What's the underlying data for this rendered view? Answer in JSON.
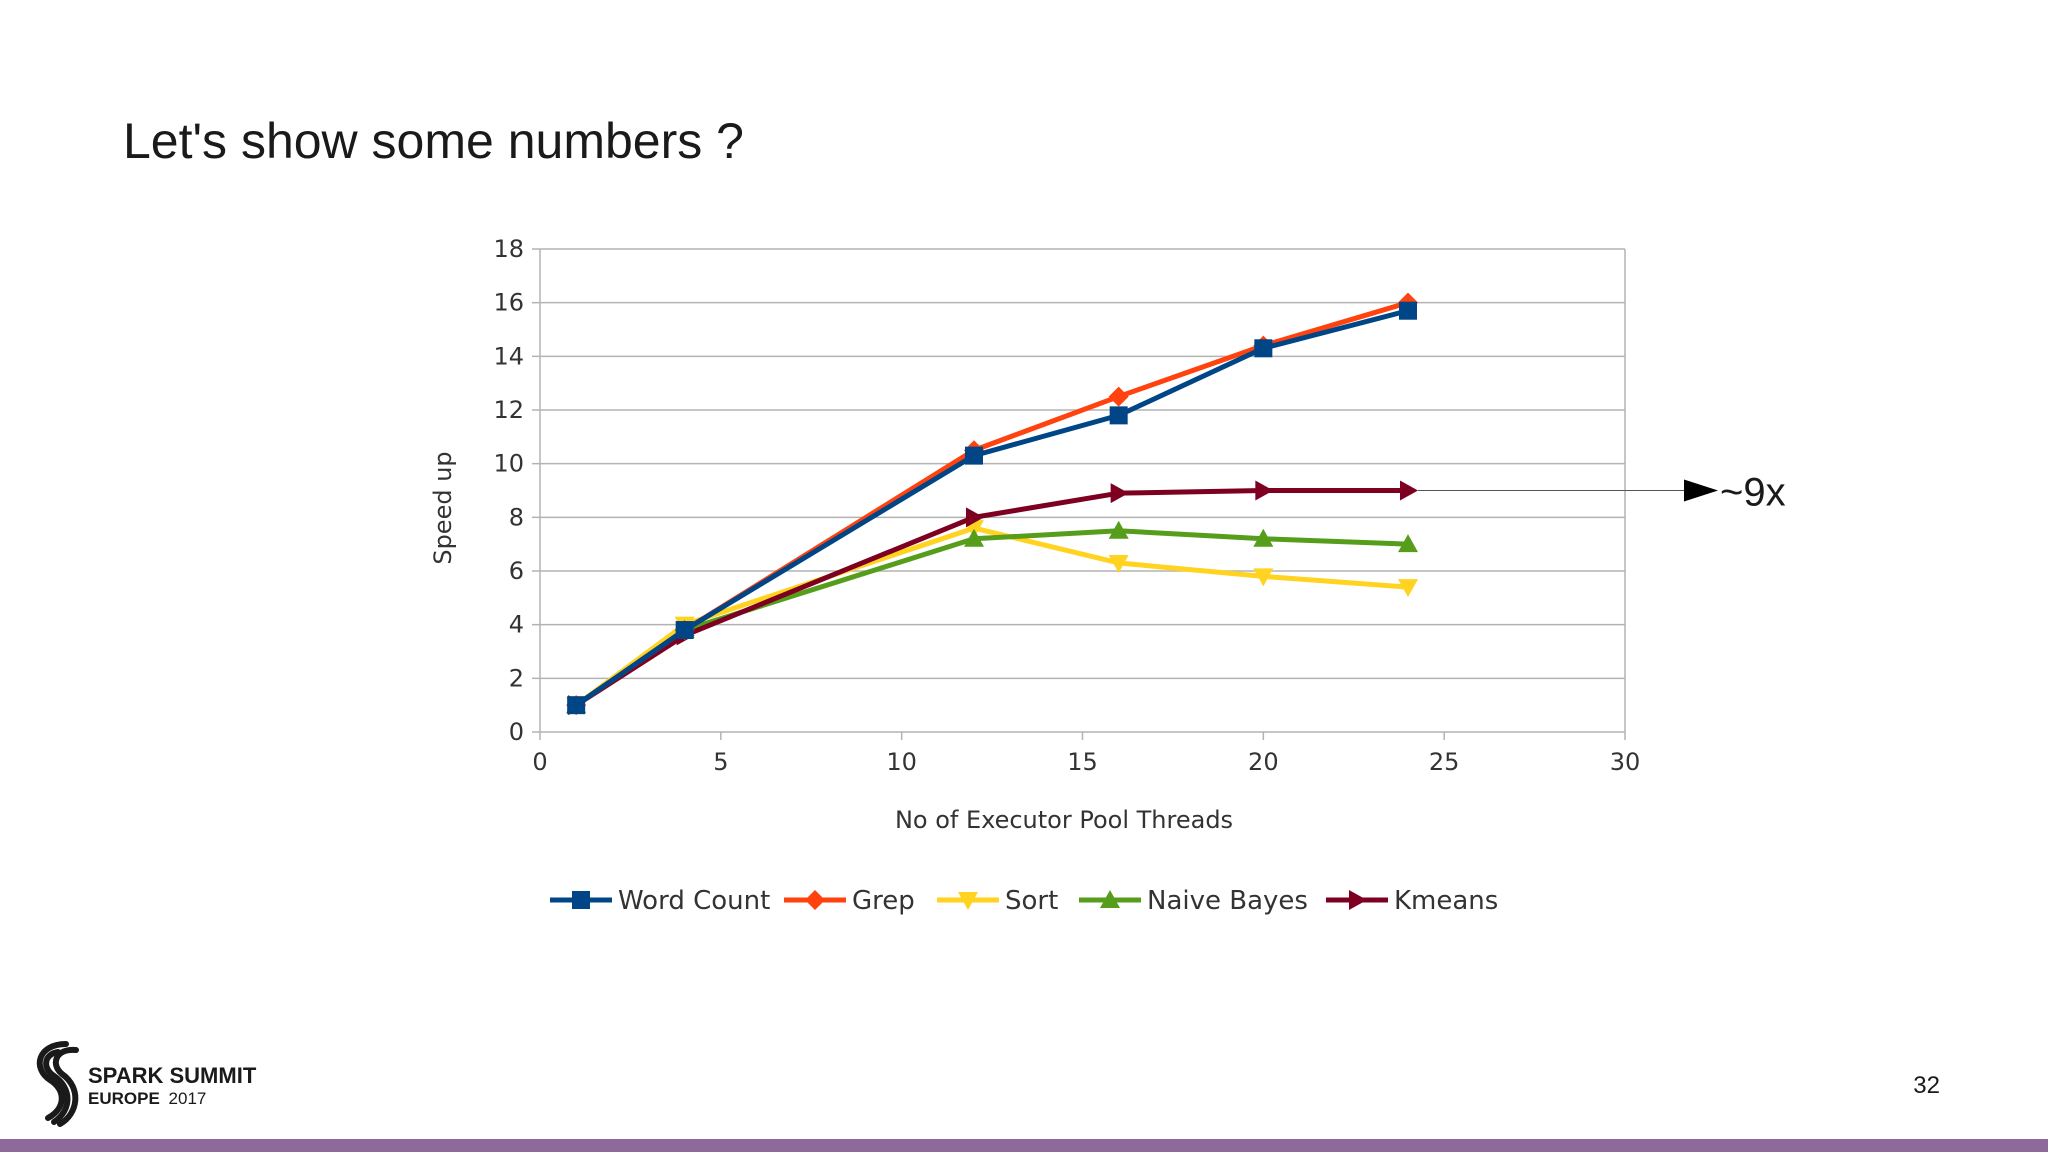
{
  "slide": {
    "title": "Let's show some numbers ?",
    "page_number": "32",
    "footer_bar_color": "#8e6a9a"
  },
  "logo": {
    "line1": "SPARK SUMMIT",
    "line2_bold": "EUROPE",
    "line2_light": "2017"
  },
  "annotation": {
    "text": "~9x",
    "at_y_value": 9,
    "icon": "right-pointing-triangle-icon"
  },
  "chart_data": {
    "type": "line",
    "title": "",
    "xlabel": "No of Executor Pool Threads",
    "ylabel": "Speed up",
    "xlim": [
      0,
      30
    ],
    "ylim": [
      0,
      18
    ],
    "xticks": [
      0,
      5,
      10,
      15,
      20,
      25,
      30
    ],
    "yticks": [
      0,
      2,
      4,
      6,
      8,
      10,
      12,
      14,
      16,
      18
    ],
    "grid": "horizontal",
    "legend": "bottom",
    "series": [
      {
        "name": "Sort",
        "color": "#ffd320",
        "marker": "triangle-down",
        "x": [
          1,
          4,
          12,
          16,
          20,
          24
        ],
        "y": [
          1.0,
          4.0,
          7.6,
          6.3,
          5.8,
          5.4
        ]
      },
      {
        "name": "Naive Bayes",
        "color": "#579d1c",
        "marker": "triangle-up",
        "x": [
          1,
          4,
          12,
          16,
          20,
          24
        ],
        "y": [
          1.0,
          3.8,
          7.2,
          7.5,
          7.2,
          7.0
        ]
      },
      {
        "name": "Kmeans",
        "color": "#7e0021",
        "marker": "triangle-right",
        "x": [
          1,
          4,
          12,
          16,
          20,
          24
        ],
        "y": [
          1.0,
          3.6,
          8.0,
          8.9,
          9.0,
          9.0
        ]
      },
      {
        "name": "Grep",
        "color": "#ff420e",
        "marker": "diamond",
        "x": [
          1,
          4,
          12,
          16,
          20,
          24
        ],
        "y": [
          1.0,
          3.8,
          10.5,
          12.5,
          14.4,
          16.0
        ]
      },
      {
        "name": "Word Count",
        "color": "#004586",
        "marker": "square",
        "x": [
          1,
          4,
          12,
          16,
          20,
          24
        ],
        "y": [
          1.0,
          3.8,
          10.3,
          11.8,
          14.3,
          15.7
        ]
      }
    ],
    "legend_order": [
      "Word Count",
      "Grep",
      "Sort",
      "Naive Bayes",
      "Kmeans"
    ]
  }
}
